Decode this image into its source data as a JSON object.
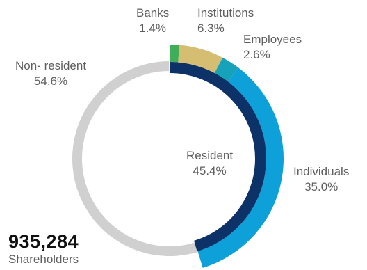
{
  "chart_data": {
    "type": "pie",
    "rings": [
      {
        "ring": "outer",
        "slices": [
          {
            "name": "Banks",
            "label": "1.4%",
            "value": 1.4,
            "color": "#3fae5a"
          },
          {
            "name": "Institutions",
            "label": "6.3%",
            "value": 6.3,
            "color": "#d5bd72"
          },
          {
            "name": "Employees",
            "label": "2.6%",
            "value": 2.6,
            "color": "#16a2b9"
          },
          {
            "name": "Individuals",
            "label": "35.0%",
            "value": 35.0,
            "color": "#0ea0d8"
          },
          {
            "name": "Non- resident",
            "label": "54.6%",
            "value": 54.6,
            "color": "#d0d0d0"
          }
        ]
      },
      {
        "ring": "inner",
        "slices": [
          {
            "name": "Resident",
            "label": "45.4%",
            "value": 45.4,
            "color": "#0d3268"
          }
        ]
      }
    ],
    "total": {
      "value": "935,284",
      "caption": "Shareholders"
    }
  }
}
